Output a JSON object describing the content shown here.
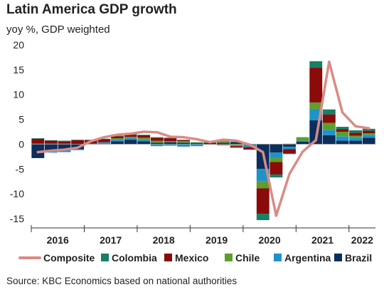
{
  "header": {
    "title": "Latin America GDP growth",
    "subtitle": "yoy %, GDP weighted"
  },
  "footer": {
    "source": "Source: KBC Economics based on national authorities"
  },
  "colors": {
    "Brazil": "#0b2e5c",
    "Argentina": "#1f93c8",
    "Chile": "#5f9e2a",
    "Mexico": "#8b0a0a",
    "Colombia": "#178066",
    "Composite": "#d98b84"
  },
  "chart_data": {
    "type": "bar",
    "subtype": "stacked bar with line overlay",
    "title": "Latin America GDP growth",
    "subtitle": "yoy %, GDP weighted",
    "ylim": [
      -15,
      20
    ],
    "yticks": [
      20,
      15,
      10,
      5,
      0,
      -5,
      -10,
      -15
    ],
    "year_labels": [
      "2016",
      "2017",
      "2018",
      "2019",
      "2020",
      "2021",
      "2022"
    ],
    "legend": [
      "Composite",
      "Colombia",
      "Mexico",
      "Chile",
      "Argentina",
      "Brazil"
    ],
    "legend_position": "bottom",
    "categories": [
      "2016Q1",
      "2016Q2",
      "2016Q3",
      "2016Q4",
      "2017Q1",
      "2017Q2",
      "2017Q3",
      "2017Q4",
      "2018Q1",
      "2018Q2",
      "2018Q3",
      "2018Q4",
      "2019Q1",
      "2019Q2",
      "2019Q3",
      "2019Q4",
      "2020Q1",
      "2020Q2",
      "2020Q3",
      "2020Q4",
      "2021Q1",
      "2021Q2",
      "2021Q3",
      "2021Q4",
      "2022Q1",
      "2022Q2"
    ],
    "series": [
      {
        "name": "Brazil",
        "values": [
          -2.8,
          -1.3,
          -1.2,
          -1.0,
          0.0,
          0.1,
          0.6,
          0.9,
          0.6,
          0.3,
          0.4,
          0.3,
          0.2,
          0.3,
          0.3,
          0.4,
          -0.1,
          -5.0,
          -1.7,
          -0.5,
          0.5,
          4.8,
          1.8,
          0.7,
          0.7,
          1.3
        ]
      },
      {
        "name": "Argentina",
        "values": [
          0.0,
          -0.4,
          -0.4,
          -0.2,
          0.1,
          0.3,
          0.3,
          0.3,
          0.3,
          -0.4,
          -0.3,
          -0.5,
          -0.4,
          0.0,
          -0.1,
          -0.1,
          -0.5,
          -2.5,
          -1.1,
          -0.5,
          0.2,
          2.3,
          1.1,
          0.9,
          0.6,
          0.6
        ]
      },
      {
        "name": "Chile",
        "values": [
          0.1,
          0.1,
          0.1,
          0.0,
          0.0,
          0.0,
          0.3,
          0.3,
          0.4,
          0.4,
          0.2,
          0.3,
          0.1,
          0.1,
          0.2,
          -0.3,
          0.0,
          -1.4,
          -0.8,
          0.1,
          0.6,
          1.3,
          1.4,
          0.9,
          0.4,
          0.3
        ]
      },
      {
        "name": "Mexico",
        "values": [
          1.0,
          0.6,
          0.5,
          0.8,
          0.7,
          0.6,
          0.4,
          0.4,
          0.5,
          0.6,
          0.6,
          0.2,
          0.0,
          -0.1,
          -0.1,
          -0.3,
          -0.5,
          -5.1,
          -2.5,
          -0.9,
          0.0,
          7.0,
          1.7,
          0.5,
          0.6,
          0.5
        ]
      },
      {
        "name": "Colombia",
        "values": [
          0.1,
          0.1,
          0.1,
          0.1,
          0.1,
          0.1,
          0.1,
          0.1,
          0.1,
          0.1,
          0.1,
          0.1,
          0.1,
          0.1,
          0.1,
          0.1,
          0.0,
          -1.3,
          -0.6,
          -0.1,
          0.1,
          1.3,
          1.0,
          0.5,
          0.5,
          0.4
        ]
      },
      {
        "name": "Composite",
        "type": "line",
        "values": [
          -1.6,
          -1.3,
          -1.1,
          -0.7,
          0.6,
          1.4,
          1.9,
          2.1,
          2.5,
          2.4,
          1.5,
          1.4,
          1.0,
          0.4,
          0.9,
          0.7,
          -0.1,
          -1.6,
          -14.4,
          -6.0,
          -1.5,
          0.8,
          16.6,
          6.4,
          3.6,
          3.2
        ]
      }
    ]
  }
}
